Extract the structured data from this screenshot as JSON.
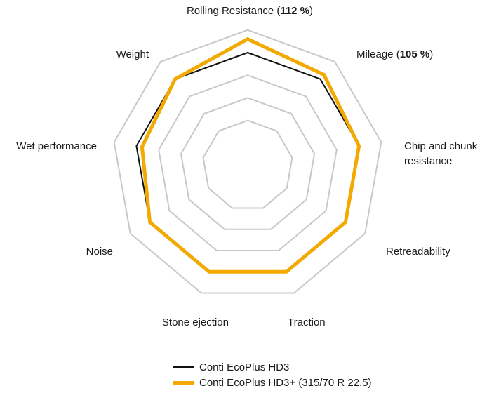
{
  "chart_data": {
    "type": "radar",
    "axes": [
      {
        "label": "Rolling Resistance",
        "value_label": "112 %"
      },
      {
        "label": "Mileage",
        "value_label": "105 %"
      },
      {
        "label": "Chip and chunk resistance"
      },
      {
        "label": "Retreadability"
      },
      {
        "label": "Traction"
      },
      {
        "label": "Stone ejection"
      },
      {
        "label": "Noise"
      },
      {
        "label": "Wet performance"
      },
      {
        "label": "Weight"
      }
    ],
    "series": [
      {
        "name": "Conti EcoPlus HD3",
        "color": "#111111",
        "values": [
          100,
          100,
          100,
          100,
          100,
          100,
          100,
          100,
          100
        ]
      },
      {
        "name": "Conti EcoPlus HD3+ (315/70 R 22.5)",
        "color": "#F2A900",
        "values": [
          112,
          105,
          100,
          100,
          100,
          100,
          100,
          95,
          100
        ]
      }
    ],
    "grid_rings": [
      40,
      60,
      80,
      120
    ],
    "grid_color": "#c8c8c8",
    "legend_position": "bottom"
  }
}
